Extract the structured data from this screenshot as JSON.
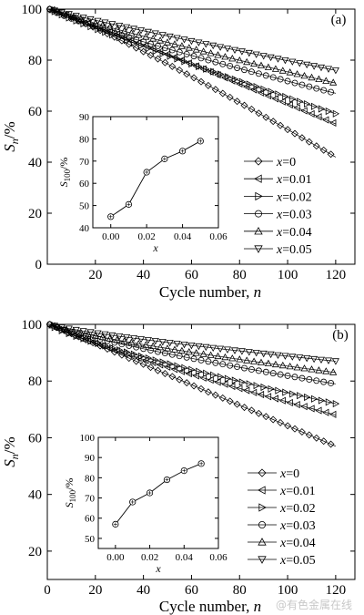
{
  "chart_data": [
    {
      "type": "line",
      "panel_label": "(a)",
      "xlabel_text": "Cycle number, ",
      "xlabel_var": "n",
      "ylabel_main": "S",
      "ylabel_sub": "n",
      "ylabel_unit": "/%",
      "xlim": [
        0,
        128
      ],
      "ylim": [
        0,
        100
      ],
      "x_ticks": [
        20,
        40,
        60,
        80,
        100,
        120
      ],
      "y_ticks": [
        0,
        20,
        40,
        60,
        80,
        100
      ],
      "series": [
        {
          "name": "x=0",
          "marker": "diamond",
          "final": 42,
          "exp": 1.12
        },
        {
          "name": "x=0.01",
          "marker": "triangle-left",
          "final": 55,
          "exp": 1.05
        },
        {
          "name": "x=0.02",
          "marker": "triangle-right",
          "final": 59,
          "exp": 0.92
        },
        {
          "name": "x=0.03",
          "marker": "circle",
          "final": 67,
          "exp": 0.85
        },
        {
          "name": "x=0.04",
          "marker": "triangle-up",
          "final": 71,
          "exp": 0.9
        },
        {
          "name": "x=0.05",
          "marker": "triangle-down",
          "final": 76,
          "exp": 0.93
        }
      ],
      "legend_location": "lower-right",
      "inset": {
        "xlabel": "x",
        "ylabel_main": "S",
        "ylabel_sub": "100",
        "ylabel_unit": "/%",
        "xlim": [
          -0.01,
          0.06
        ],
        "ylim": [
          40,
          90
        ],
        "x_ticks": [
          "0.00",
          "0.02",
          "0.04",
          "0.06"
        ],
        "y_ticks": [
          40,
          50,
          60,
          70,
          80,
          90
        ],
        "x": [
          0,
          0.01,
          0.02,
          0.03,
          0.04,
          0.05
        ],
        "y": [
          45,
          50.5,
          65,
          71,
          74.5,
          79
        ]
      }
    },
    {
      "type": "line",
      "panel_label": "(b)",
      "xlabel_text": "Cycle number, ",
      "xlabel_var": "n",
      "ylabel_main": "S",
      "ylabel_sub": "n",
      "ylabel_unit": "/%",
      "xlim": [
        0,
        128
      ],
      "ylim": [
        10,
        100
      ],
      "x_ticks": [
        0,
        20,
        40,
        60,
        80,
        100,
        120
      ],
      "y_ticks": [
        20,
        40,
        60,
        80,
        100
      ],
      "series": [
        {
          "name": "x=0",
          "marker": "diamond",
          "final": 57,
          "exp": 1.0
        },
        {
          "name": "x=0.01",
          "marker": "triangle-left",
          "final": 68,
          "exp": 0.85
        },
        {
          "name": "x=0.02",
          "marker": "triangle-right",
          "final": 72,
          "exp": 0.8
        },
        {
          "name": "x=0.03",
          "marker": "circle",
          "final": 79,
          "exp": 0.8
        },
        {
          "name": "x=0.04",
          "marker": "triangle-up",
          "final": 83,
          "exp": 0.78
        },
        {
          "name": "x=0.05",
          "marker": "triangle-down",
          "final": 87,
          "exp": 0.8
        }
      ],
      "legend_location": "lower-right",
      "inset": {
        "xlabel": "x",
        "ylabel_main": "S",
        "ylabel_sub": "100",
        "ylabel_unit": "/%",
        "xlim": [
          -0.01,
          0.06
        ],
        "ylim": [
          45,
          100
        ],
        "x_ticks": [
          "0.00",
          "0.02",
          "0.04",
          "0.06"
        ],
        "y_ticks": [
          50,
          60,
          70,
          80,
          90,
          100
        ],
        "x": [
          0,
          0.01,
          0.02,
          0.03,
          0.04,
          0.05
        ],
        "y": [
          57,
          68,
          72.5,
          79,
          83.5,
          87
        ]
      }
    }
  ],
  "watermark": "@有色金属在线"
}
